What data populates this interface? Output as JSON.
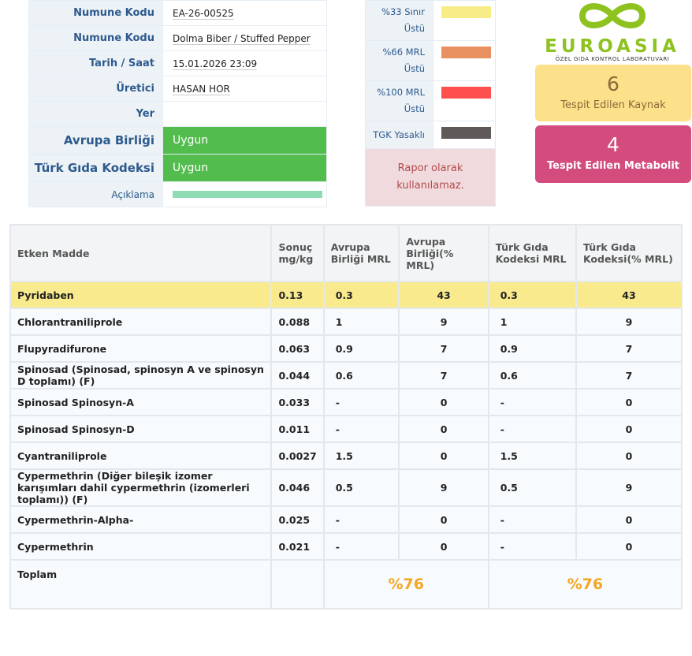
{
  "info": [
    {
      "label": "Numune Kodu",
      "value": "EA-26-00525"
    },
    {
      "label": "Numune Kodu",
      "value": "Dolma Biber / Stuffed Pepper"
    },
    {
      "label": "Tarih / Saat",
      "value": "15.01.2026 23:09"
    },
    {
      "label": "Üretici",
      "value": "HASAN HOR"
    },
    {
      "label": "Yer",
      "value": ""
    }
  ],
  "status": [
    {
      "label": "Avrupa Birliği",
      "value": "Uygun"
    },
    {
      "label": "Türk Gıda Kodeksi",
      "value": "Uygun"
    }
  ],
  "aciklama_label": "Açıklama",
  "legend": [
    {
      "label": "%33 Sınır Üstü",
      "color": "#f7ec86"
    },
    {
      "label": "%66 MRL Üstü",
      "color": "#e8905f"
    },
    {
      "label": "%100 MRL Üstü",
      "color": "#ff5050"
    },
    {
      "label": "TGK Yasaklı",
      "color": "#5f5959"
    }
  ],
  "warning": "Rapor olarak kullanılamaz.",
  "logo": {
    "name": "EUROASIA",
    "subtitle": "ÖZEL GIDA KONTROL LABORATUVARI"
  },
  "cards": [
    {
      "number": "6",
      "label": "Tespit Edilen Kaynak",
      "color": "#fde08a"
    },
    {
      "number": "4",
      "label": "Tespit Edilen Metabolit",
      "color": "#d44c7d"
    }
  ],
  "table": {
    "headers": [
      "Etken Madde",
      "Sonuç mg/kg",
      "Avrupa Birliği MRL",
      "Avrupa Birliği(% MRL)",
      "Türk Gıda Kodeksi MRL",
      "Türk Gıda Kodeksi(% MRL)"
    ],
    "rows": [
      [
        "Pyridaben",
        "0.13",
        "0.3",
        "43",
        "0.3",
        "43"
      ],
      [
        "Chlorantraniliprole",
        "0.088",
        "1",
        "9",
        "1",
        "9"
      ],
      [
        "Flupyradifurone",
        "0.063",
        "0.9",
        "7",
        "0.9",
        "7"
      ],
      [
        "Spinosad (Spinosad, spinosyn A ve spinosyn D toplamı) (F)",
        "0.044",
        "0.6",
        "7",
        "0.6",
        "7"
      ],
      [
        "Spinosad Spinosyn-A",
        "0.033",
        "-",
        "0",
        "-",
        "0"
      ],
      [
        "Spinosad Spinosyn-D",
        "0.011",
        "-",
        "0",
        "-",
        "0"
      ],
      [
        "Cyantraniliprole",
        "0.0027",
        "1.5",
        "0",
        "1.5",
        "0"
      ],
      [
        "Cypermethrin (Diğer bileşik izomer karışımları dahil cypermethrin (izomerleri toplamı)) (F)",
        "0.046",
        "0.5",
        "9",
        "0.5",
        "9"
      ],
      [
        "Cypermethrin-Alpha-",
        "0.025",
        "-",
        "0",
        "-",
        "0"
      ],
      [
        "Cypermethrin",
        "0.021",
        "-",
        "0",
        "-",
        "0"
      ]
    ],
    "highlight_row_color": "#f9ea8e",
    "total": {
      "label": "Toplam",
      "eu": "%76",
      "tgk": "%76"
    }
  }
}
